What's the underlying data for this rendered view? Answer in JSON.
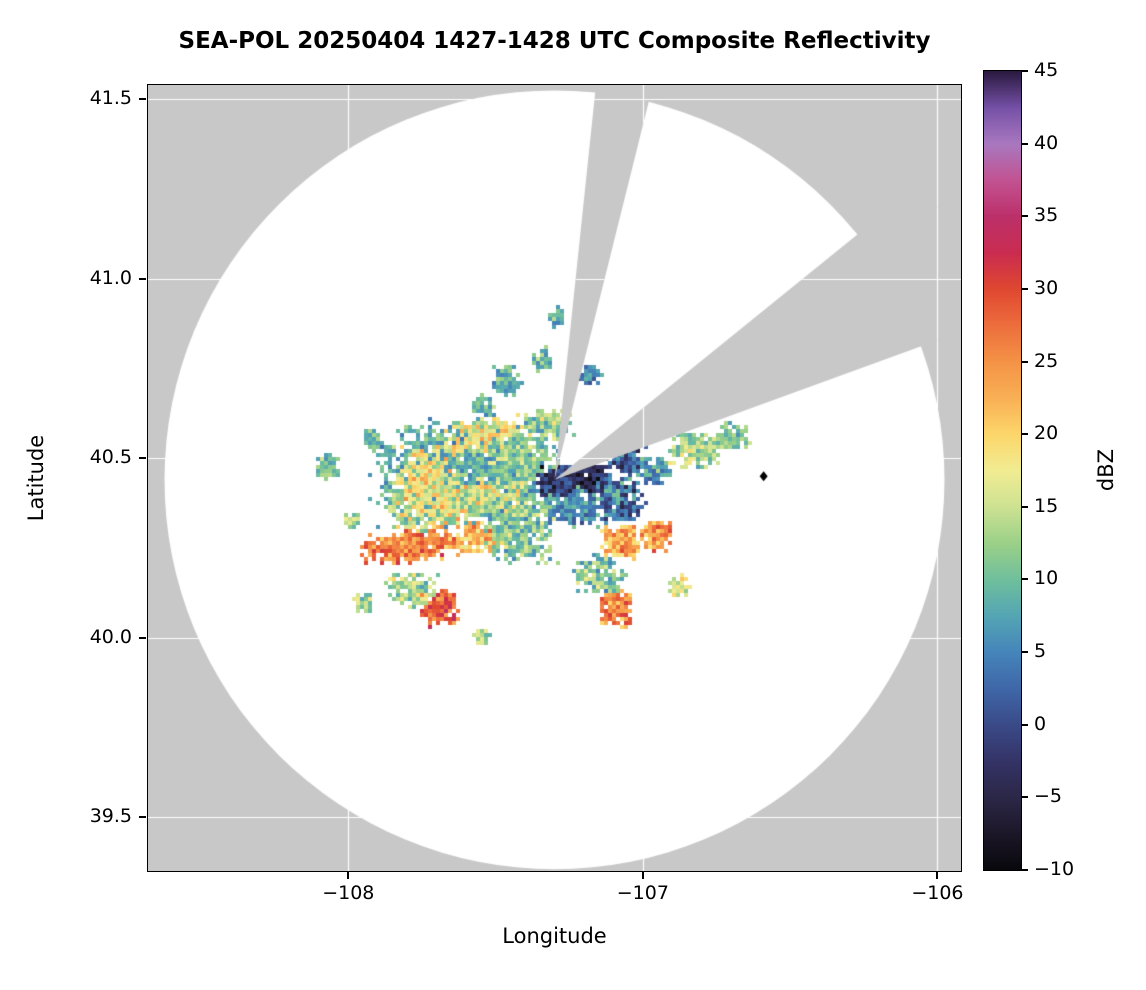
{
  "chart_data": {
    "type": "heatmap",
    "title": "SEA-POL 20250404 1427-1428 UTC Composite Reflectivity",
    "xlabel": "Longitude",
    "ylabel": "Latitude",
    "xlim": [
      -108.68,
      -105.92
    ],
    "ylim": [
      39.35,
      41.54
    ],
    "xticks": [
      -108,
      -107,
      -106
    ],
    "xtick_labels": [
      "−108",
      "−107",
      "−106"
    ],
    "yticks": [
      39.5,
      40.0,
      40.5,
      41.0,
      41.5
    ],
    "ytick_labels": [
      "39.5",
      "40.0",
      "40.5",
      "41.0",
      "41.5"
    ],
    "grid": {
      "on": true,
      "color": "#ffffff"
    },
    "colors": {
      "outside_scan": "#c8c8c8",
      "scan_area": "#ffffff",
      "frame": "#000000",
      "text": "#000000"
    },
    "colorbar": {
      "label": "dBZ",
      "min": -10,
      "max": 45,
      "ticks": [
        45,
        40,
        35,
        30,
        25,
        20,
        15,
        10,
        5,
        0,
        -5,
        -10
      ],
      "tick_labels": [
        "45",
        "40",
        "35",
        "30",
        "25",
        "20",
        "15",
        "10",
        "5",
        "0",
        "−5",
        "−10"
      ]
    },
    "colormap_stops": [
      [
        -10,
        "#08080c"
      ],
      [
        -7.5,
        "#1c1728"
      ],
      [
        -5,
        "#2b2747"
      ],
      [
        -2.5,
        "#343366"
      ],
      [
        0,
        "#3a4a88"
      ],
      [
        2.5,
        "#3f67a8"
      ],
      [
        5,
        "#4585ba"
      ],
      [
        7.5,
        "#54a5b4"
      ],
      [
        10,
        "#6fbf9d"
      ],
      [
        12.5,
        "#9bd088"
      ],
      [
        15,
        "#cde292"
      ],
      [
        17.5,
        "#f1ec92"
      ],
      [
        20,
        "#fcd76b"
      ],
      [
        22.5,
        "#f9b055"
      ],
      [
        25,
        "#f49346"
      ],
      [
        27.5,
        "#ed6e3d"
      ],
      [
        30,
        "#df4830"
      ],
      [
        32.5,
        "#ca2c50"
      ],
      [
        35,
        "#bc306a"
      ],
      [
        37.5,
        "#c25392"
      ],
      [
        40,
        "#a978bf"
      ],
      [
        42.5,
        "#7651a7"
      ],
      [
        45,
        "#2a1a40"
      ]
    ],
    "radar": {
      "center_lon": -107.3,
      "center_lat": 40.44,
      "range_lon_deg": 1.324,
      "range_lat_deg": 1.085,
      "blocked_sectors_az_deg": [
        [
          6,
          14
        ],
        [
          51,
          70
        ]
      ]
    },
    "marker": {
      "lon": -106.59,
      "lat": 40.45,
      "shape": "diamond",
      "color": "#000000"
    },
    "echo_cell_fields": [
      "lon",
      "lat",
      "rx_deg",
      "ry_deg",
      "rot_deg",
      "mean_dbz",
      "spread_dbz",
      "n_points"
    ],
    "echo_cells": [
      [
        -107.6,
        40.46,
        0.34,
        0.16,
        0,
        9,
        4,
        1600
      ],
      [
        -107.63,
        40.38,
        0.26,
        0.07,
        -9,
        16,
        6,
        550
      ],
      [
        -107.74,
        40.45,
        0.13,
        0.1,
        0,
        18,
        6,
        280
      ],
      [
        -107.55,
        40.57,
        0.15,
        0.05,
        -6,
        18,
        5,
        240
      ],
      [
        -107.44,
        40.5,
        0.1,
        0.08,
        0,
        12,
        5,
        250
      ],
      [
        -107.8,
        40.26,
        0.17,
        0.05,
        -9,
        26,
        5,
        300
      ],
      [
        -107.58,
        40.28,
        0.11,
        0.045,
        -6,
        22,
        5,
        170
      ],
      [
        -107.7,
        40.09,
        0.07,
        0.055,
        0,
        28,
        5,
        220
      ],
      [
        -107.79,
        40.14,
        0.09,
        0.05,
        0,
        13,
        5,
        150
      ],
      [
        -107.42,
        40.3,
        0.13,
        0.09,
        0,
        11,
        5,
        320
      ],
      [
        -107.29,
        40.44,
        0.08,
        0.05,
        0,
        -2,
        5,
        260
      ],
      [
        -107.18,
        40.45,
        0.06,
        0.045,
        0,
        -4,
        4,
        160
      ],
      [
        -107.24,
        40.37,
        0.09,
        0.06,
        0,
        6,
        5,
        200
      ],
      [
        -107.1,
        40.39,
        0.1,
        0.07,
        0,
        3,
        6,
        260
      ],
      [
        -107.06,
        40.5,
        0.08,
        0.05,
        0,
        2,
        6,
        170
      ],
      [
        -106.97,
        40.47,
        0.06,
        0.04,
        0,
        7,
        5,
        100
      ],
      [
        -107.08,
        40.27,
        0.075,
        0.05,
        0,
        23,
        5,
        180
      ],
      [
        -106.96,
        40.29,
        0.055,
        0.045,
        0,
        25,
        5,
        140
      ],
      [
        -107.1,
        40.09,
        0.055,
        0.06,
        0,
        26,
        5,
        170
      ],
      [
        -107.16,
        40.18,
        0.1,
        0.06,
        0,
        11,
        5,
        170
      ],
      [
        -106.88,
        40.15,
        0.04,
        0.035,
        0,
        17,
        5,
        60
      ],
      [
        -106.83,
        40.53,
        0.09,
        0.055,
        0,
        13,
        5,
        210
      ],
      [
        -106.7,
        40.57,
        0.055,
        0.04,
        0,
        11,
        4,
        90
      ],
      [
        -106.93,
        40.61,
        0.05,
        0.035,
        0,
        9,
        4,
        70
      ],
      [
        -107.47,
        40.72,
        0.05,
        0.045,
        0,
        9,
        4,
        90
      ],
      [
        -107.35,
        40.78,
        0.04,
        0.035,
        0,
        10,
        4,
        60
      ],
      [
        -107.3,
        40.9,
        0.03,
        0.025,
        0,
        9,
        4,
        40
      ],
      [
        -107.18,
        40.74,
        0.035,
        0.03,
        0,
        6,
        5,
        50
      ],
      [
        -107.55,
        40.65,
        0.04,
        0.03,
        0,
        10,
        4,
        60
      ],
      [
        -107.33,
        40.6,
        0.09,
        0.045,
        0,
        12,
        5,
        160
      ],
      [
        -108.08,
        40.48,
        0.045,
        0.04,
        0,
        11,
        4,
        70
      ],
      [
        -108.0,
        40.33,
        0.03,
        0.025,
        0,
        13,
        4,
        35
      ],
      [
        -107.93,
        40.56,
        0.035,
        0.03,
        0,
        10,
        4,
        45
      ],
      [
        -107.95,
        40.1,
        0.04,
        0.03,
        0,
        13,
        4,
        50
      ],
      [
        -107.55,
        40.01,
        0.03,
        0.025,
        0,
        14,
        4,
        40
      ],
      [
        -107.23,
        40.73,
        0.015,
        0.012,
        0,
        -5,
        2,
        10
      ]
    ]
  }
}
